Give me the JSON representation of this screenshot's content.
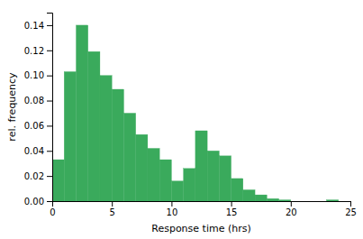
{
  "chart_data": {
    "type": "histogram",
    "bins": [
      0,
      1,
      2,
      3,
      4,
      5,
      6,
      7,
      8,
      9,
      10,
      11,
      12,
      13,
      14,
      15,
      16,
      17,
      18,
      19,
      20,
      21,
      22,
      23,
      24,
      25
    ],
    "values": [
      0.033,
      0.103,
      0.14,
      0.119,
      0.1,
      0.089,
      0.07,
      0.053,
      0.042,
      0.033,
      0.016,
      0.026,
      0.056,
      0.04,
      0.036,
      0.018,
      0.009,
      0.005,
      0.002,
      0.001,
      0.0,
      0.0,
      0.0,
      0.001,
      0.0
    ],
    "color": "#3aaa5c",
    "xlabel": "Response time (hrs)",
    "ylabel": "rel. frequency",
    "xlim": [
      0,
      25
    ],
    "ylim": [
      0,
      0.15
    ],
    "xticks": [
      0,
      5,
      10,
      15,
      20,
      25
    ],
    "yticks": [
      {
        "value": 0.0,
        "label": "0.00"
      },
      {
        "value": 0.02,
        "label": "0.02"
      },
      {
        "value": 0.04,
        "label": "0.04"
      },
      {
        "value": 0.06,
        "label": "0.06"
      },
      {
        "value": 0.08,
        "label": "0.08"
      },
      {
        "value": 0.1,
        "label": "0.10"
      },
      {
        "value": 0.12,
        "label": "0.12"
      },
      {
        "value": 0.14,
        "label": "0.14"
      }
    ]
  }
}
